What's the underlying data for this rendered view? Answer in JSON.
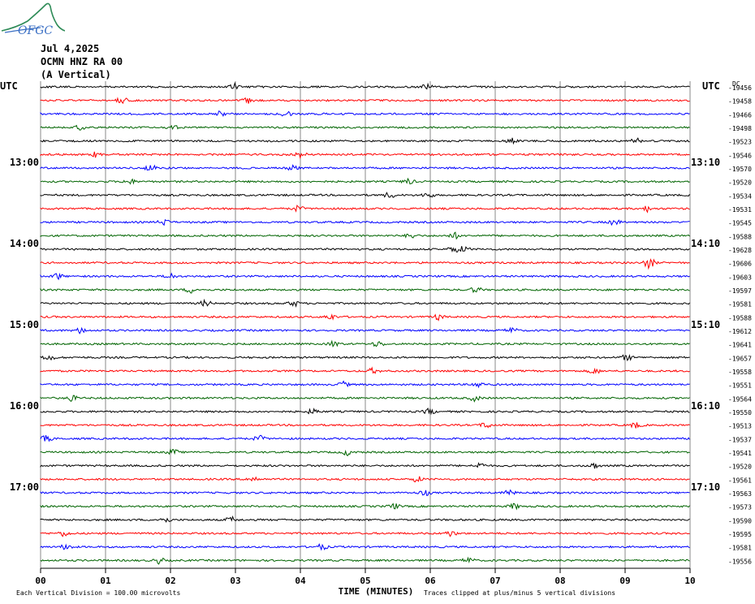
{
  "logo": {
    "text": "OFGC"
  },
  "header": {
    "date": "Jul 4,2025",
    "station": "OCMN HNZ RA 00",
    "component": "(A Vertical)"
  },
  "chart_data": {
    "type": "line",
    "left_label": "UTC",
    "right_label": "UTC",
    "dc_label": "DC",
    "left_times": [
      "13:00",
      "14:00",
      "15:00",
      "16:00",
      "17:00"
    ],
    "right_times": [
      "13:10",
      "14:10",
      "15:10",
      "16:10",
      "17:10"
    ],
    "xlabel": "TIME (MINUTES)",
    "x_ticks": [
      "00",
      "01",
      "02",
      "03",
      "04",
      "05",
      "06",
      "07",
      "08",
      "09",
      "10"
    ],
    "xlim": [
      0,
      10
    ],
    "trace_colors": [
      "#000000",
      "#ff0000",
      "#0000ff",
      "#006400"
    ],
    "dc_offsets": [
      "-19456",
      "-19458",
      "-19466",
      "-19498",
      "-19523",
      "-19546",
      "-19570",
      "-19520",
      "-19534",
      "-19531",
      "-19545",
      "-19588",
      "-19628",
      "-19606",
      "-19603",
      "-19597",
      "-19581",
      "-19588",
      "-19612",
      "-19641",
      "-19657",
      "-19558",
      "-19551",
      "-19564",
      "-19550",
      "-19513",
      "-19537",
      "-19541",
      "-19520",
      "-19561",
      "-19563",
      "-19573",
      "-19590",
      "-19595",
      "-19581",
      "-19556"
    ],
    "footnote_left": "Each Vertical Division =  100.00 microvolts",
    "footnote_right": "Traces clipped at plus/minus 5 vertical divisions"
  }
}
